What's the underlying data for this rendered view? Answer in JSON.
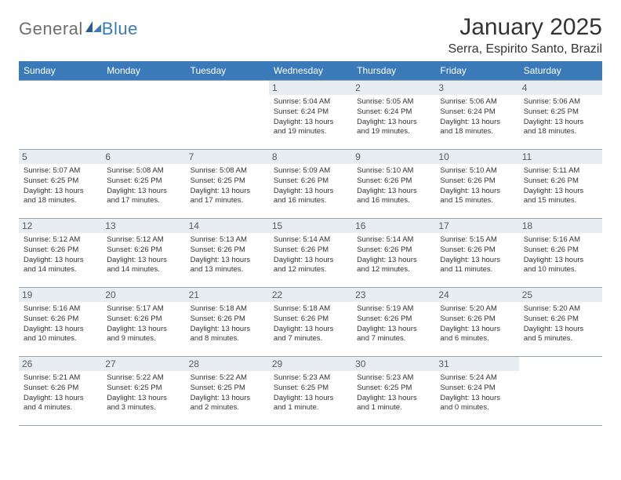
{
  "brand": {
    "general": "General",
    "blue": "Blue",
    "color_general": "#6e6e6e",
    "color_blue": "#3a7ab8"
  },
  "header": {
    "month_title": "January 2025",
    "location": "Serra, Espirito Santo, Brazil"
  },
  "colors": {
    "header_bg": "#3a7ab8",
    "header_fg": "#ffffff",
    "daynum_bg": "#e8edf1",
    "daynum_fg": "#5a5a5a",
    "grid_line": "#9aa3ab",
    "text": "#333333",
    "page_bg": "#ffffff"
  },
  "weekdays": [
    "Sunday",
    "Monday",
    "Tuesday",
    "Wednesday",
    "Thursday",
    "Friday",
    "Saturday"
  ],
  "weeks": [
    [
      {
        "day": null
      },
      {
        "day": null
      },
      {
        "day": null
      },
      {
        "day": "1",
        "sunrise": "Sunrise: 5:04 AM",
        "sunset": "Sunset: 6:24 PM",
        "daylight": "Daylight: 13 hours and 19 minutes."
      },
      {
        "day": "2",
        "sunrise": "Sunrise: 5:05 AM",
        "sunset": "Sunset: 6:24 PM",
        "daylight": "Daylight: 13 hours and 19 minutes."
      },
      {
        "day": "3",
        "sunrise": "Sunrise: 5:06 AM",
        "sunset": "Sunset: 6:24 PM",
        "daylight": "Daylight: 13 hours and 18 minutes."
      },
      {
        "day": "4",
        "sunrise": "Sunrise: 5:06 AM",
        "sunset": "Sunset: 6:25 PM",
        "daylight": "Daylight: 13 hours and 18 minutes."
      }
    ],
    [
      {
        "day": "5",
        "sunrise": "Sunrise: 5:07 AM",
        "sunset": "Sunset: 6:25 PM",
        "daylight": "Daylight: 13 hours and 18 minutes."
      },
      {
        "day": "6",
        "sunrise": "Sunrise: 5:08 AM",
        "sunset": "Sunset: 6:25 PM",
        "daylight": "Daylight: 13 hours and 17 minutes."
      },
      {
        "day": "7",
        "sunrise": "Sunrise: 5:08 AM",
        "sunset": "Sunset: 6:25 PM",
        "daylight": "Daylight: 13 hours and 17 minutes."
      },
      {
        "day": "8",
        "sunrise": "Sunrise: 5:09 AM",
        "sunset": "Sunset: 6:26 PM",
        "daylight": "Daylight: 13 hours and 16 minutes."
      },
      {
        "day": "9",
        "sunrise": "Sunrise: 5:10 AM",
        "sunset": "Sunset: 6:26 PM",
        "daylight": "Daylight: 13 hours and 16 minutes."
      },
      {
        "day": "10",
        "sunrise": "Sunrise: 5:10 AM",
        "sunset": "Sunset: 6:26 PM",
        "daylight": "Daylight: 13 hours and 15 minutes."
      },
      {
        "day": "11",
        "sunrise": "Sunrise: 5:11 AM",
        "sunset": "Sunset: 6:26 PM",
        "daylight": "Daylight: 13 hours and 15 minutes."
      }
    ],
    [
      {
        "day": "12",
        "sunrise": "Sunrise: 5:12 AM",
        "sunset": "Sunset: 6:26 PM",
        "daylight": "Daylight: 13 hours and 14 minutes."
      },
      {
        "day": "13",
        "sunrise": "Sunrise: 5:12 AM",
        "sunset": "Sunset: 6:26 PM",
        "daylight": "Daylight: 13 hours and 14 minutes."
      },
      {
        "day": "14",
        "sunrise": "Sunrise: 5:13 AM",
        "sunset": "Sunset: 6:26 PM",
        "daylight": "Daylight: 13 hours and 13 minutes."
      },
      {
        "day": "15",
        "sunrise": "Sunrise: 5:14 AM",
        "sunset": "Sunset: 6:26 PM",
        "daylight": "Daylight: 13 hours and 12 minutes."
      },
      {
        "day": "16",
        "sunrise": "Sunrise: 5:14 AM",
        "sunset": "Sunset: 6:26 PM",
        "daylight": "Daylight: 13 hours and 12 minutes."
      },
      {
        "day": "17",
        "sunrise": "Sunrise: 5:15 AM",
        "sunset": "Sunset: 6:26 PM",
        "daylight": "Daylight: 13 hours and 11 minutes."
      },
      {
        "day": "18",
        "sunrise": "Sunrise: 5:16 AM",
        "sunset": "Sunset: 6:26 PM",
        "daylight": "Daylight: 13 hours and 10 minutes."
      }
    ],
    [
      {
        "day": "19",
        "sunrise": "Sunrise: 5:16 AM",
        "sunset": "Sunset: 6:26 PM",
        "daylight": "Daylight: 13 hours and 10 minutes."
      },
      {
        "day": "20",
        "sunrise": "Sunrise: 5:17 AM",
        "sunset": "Sunset: 6:26 PM",
        "daylight": "Daylight: 13 hours and 9 minutes."
      },
      {
        "day": "21",
        "sunrise": "Sunrise: 5:18 AM",
        "sunset": "Sunset: 6:26 PM",
        "daylight": "Daylight: 13 hours and 8 minutes."
      },
      {
        "day": "22",
        "sunrise": "Sunrise: 5:18 AM",
        "sunset": "Sunset: 6:26 PM",
        "daylight": "Daylight: 13 hours and 7 minutes."
      },
      {
        "day": "23",
        "sunrise": "Sunrise: 5:19 AM",
        "sunset": "Sunset: 6:26 PM",
        "daylight": "Daylight: 13 hours and 7 minutes."
      },
      {
        "day": "24",
        "sunrise": "Sunrise: 5:20 AM",
        "sunset": "Sunset: 6:26 PM",
        "daylight": "Daylight: 13 hours and 6 minutes."
      },
      {
        "day": "25",
        "sunrise": "Sunrise: 5:20 AM",
        "sunset": "Sunset: 6:26 PM",
        "daylight": "Daylight: 13 hours and 5 minutes."
      }
    ],
    [
      {
        "day": "26",
        "sunrise": "Sunrise: 5:21 AM",
        "sunset": "Sunset: 6:26 PM",
        "daylight": "Daylight: 13 hours and 4 minutes."
      },
      {
        "day": "27",
        "sunrise": "Sunrise: 5:22 AM",
        "sunset": "Sunset: 6:25 PM",
        "daylight": "Daylight: 13 hours and 3 minutes."
      },
      {
        "day": "28",
        "sunrise": "Sunrise: 5:22 AM",
        "sunset": "Sunset: 6:25 PM",
        "daylight": "Daylight: 13 hours and 2 minutes."
      },
      {
        "day": "29",
        "sunrise": "Sunrise: 5:23 AM",
        "sunset": "Sunset: 6:25 PM",
        "daylight": "Daylight: 13 hours and 1 minute."
      },
      {
        "day": "30",
        "sunrise": "Sunrise: 5:23 AM",
        "sunset": "Sunset: 6:25 PM",
        "daylight": "Daylight: 13 hours and 1 minute."
      },
      {
        "day": "31",
        "sunrise": "Sunrise: 5:24 AM",
        "sunset": "Sunset: 6:24 PM",
        "daylight": "Daylight: 13 hours and 0 minutes."
      },
      {
        "day": null
      }
    ]
  ]
}
